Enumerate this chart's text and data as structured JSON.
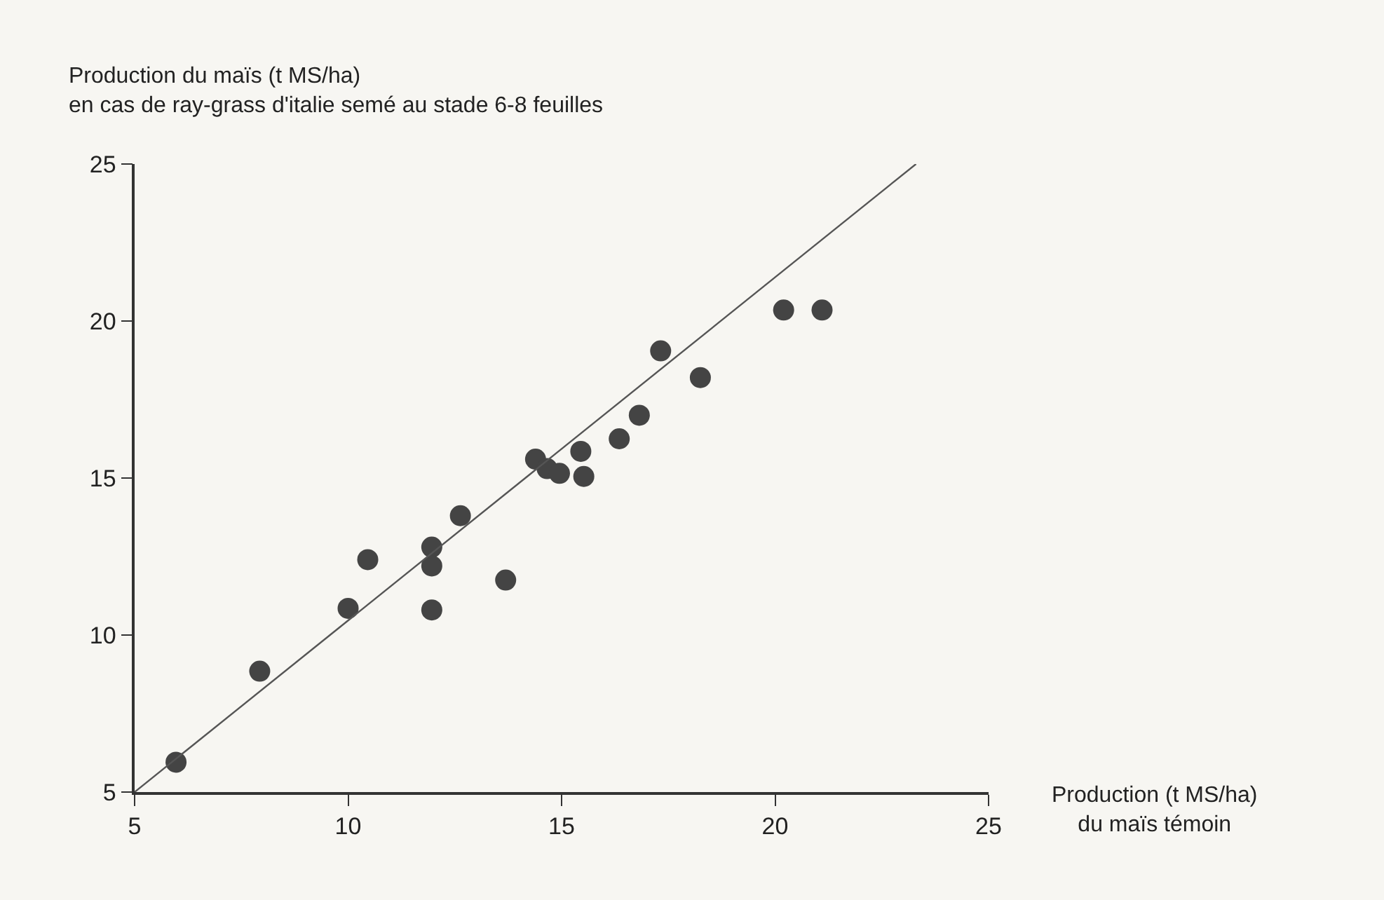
{
  "chart_data": {
    "type": "scatter",
    "ylabel": "Production du maïs (t MS/ha)\nen cas de ray-grass d'italie semé au stade 6-8 feuilles",
    "xlabel": "Production (t MS/ha)\ndu maïs témoin",
    "xlim": [
      5,
      25
    ],
    "ylim": [
      5,
      25
    ],
    "xticks": [
      5,
      10,
      15,
      20,
      25
    ],
    "yticks": [
      5,
      10,
      15,
      20,
      25
    ],
    "grid": false,
    "series": [
      {
        "marker": "circle",
        "color": "#444444",
        "x": [
          5.97,
          7.93,
          10.0,
          10.46,
          11.96,
          11.96,
          11.96,
          12.63,
          13.69,
          14.39,
          14.66,
          14.95,
          15.45,
          15.52,
          16.35,
          16.82,
          17.32,
          18.25,
          20.2,
          21.1
        ],
        "values": [
          5.95,
          8.85,
          10.85,
          12.4,
          12.8,
          12.2,
          10.8,
          13.8,
          11.75,
          15.6,
          15.3,
          15.15,
          15.85,
          15.05,
          16.25,
          17.0,
          19.05,
          18.2,
          20.35,
          20.35
        ]
      },
      {
        "type": "line",
        "color": "#555555",
        "x": [
          5,
          23.3
        ],
        "values": [
          5,
          25
        ]
      }
    ]
  }
}
